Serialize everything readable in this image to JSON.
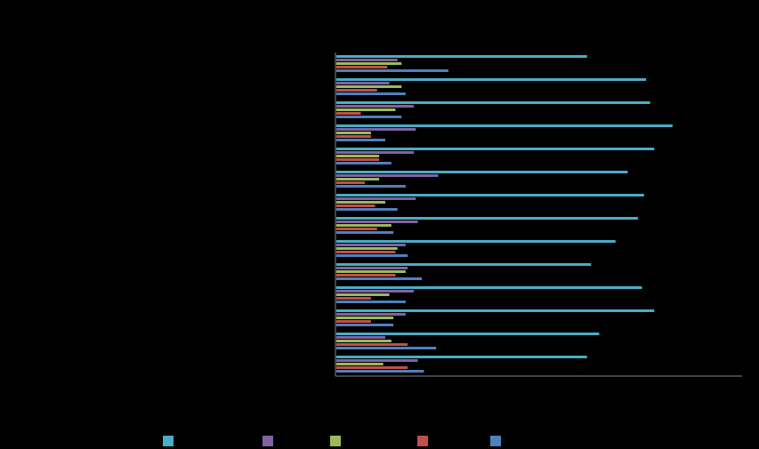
{
  "chart_data": {
    "type": "bar",
    "orientation": "horizontal",
    "grid": false,
    "legend_placement": "bottom",
    "groups": 14,
    "xlim": [
      0,
      100
    ],
    "series": [
      {
        "color": "#4bacc6",
        "values": [
          61.5,
          76,
          77,
          82.5,
          78,
          71.5,
          75.5,
          74,
          68.5,
          62.5,
          75,
          78,
          64.5,
          61.5
        ]
      },
      {
        "color": "#8064a2",
        "values": [
          15,
          13,
          19,
          19.5,
          19,
          25,
          19.5,
          20,
          17,
          17.5,
          19,
          17,
          12,
          20
        ]
      },
      {
        "color": "#9bbb59",
        "values": [
          16,
          16,
          14.5,
          8.5,
          10.5,
          10.5,
          12,
          13.5,
          15,
          17,
          13,
          14,
          13.5,
          11.5
        ]
      },
      {
        "color": "#c0504d",
        "values": [
          12.5,
          10,
          6,
          8.5,
          10.5,
          7,
          9.5,
          10,
          14.5,
          14.5,
          8.5,
          8.5,
          17.5,
          17.5
        ]
      },
      {
        "color": "#4f81bd",
        "values": [
          27.5,
          17,
          16,
          12,
          13.5,
          17,
          15,
          14,
          17.5,
          21,
          17,
          14,
          24.5,
          21.5
        ]
      }
    ]
  }
}
